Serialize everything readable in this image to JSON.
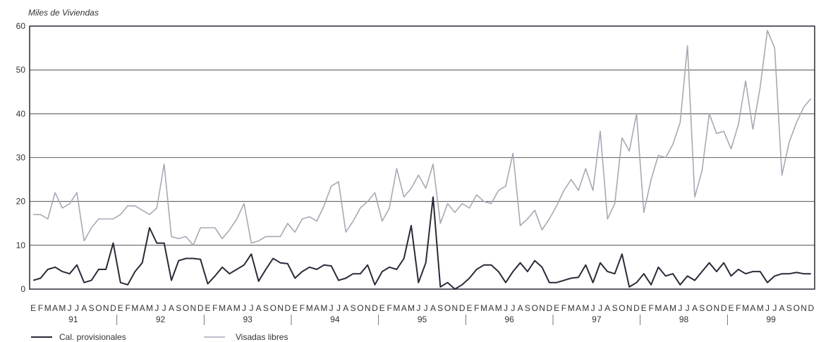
{
  "chart_data": {
    "type": "line",
    "ylabel": "Miles de Viviendas",
    "ylim": [
      0,
      60
    ],
    "yticks": [
      0,
      10,
      20,
      30,
      40,
      50,
      60
    ],
    "grid": "horizontal",
    "month_letters": [
      "E",
      "F",
      "M",
      "A",
      "M",
      "J",
      "J",
      "A",
      "S",
      "O",
      "N",
      "D"
    ],
    "years": [
      "91",
      "92",
      "93",
      "94",
      "95",
      "96",
      "97",
      "98",
      "99"
    ],
    "x": [
      "1991-01",
      "1991-02",
      "1991-03",
      "1991-04",
      "1991-05",
      "1991-06",
      "1991-07",
      "1991-08",
      "1991-09",
      "1991-10",
      "1991-11",
      "1991-12",
      "1992-01",
      "1992-02",
      "1992-03",
      "1992-04",
      "1992-05",
      "1992-06",
      "1992-07",
      "1992-08",
      "1992-09",
      "1992-10",
      "1992-11",
      "1992-12",
      "1993-01",
      "1993-02",
      "1993-03",
      "1993-04",
      "1993-05",
      "1993-06",
      "1993-07",
      "1993-08",
      "1993-09",
      "1993-10",
      "1993-11",
      "1993-12",
      "1994-01",
      "1994-02",
      "1994-03",
      "1994-04",
      "1994-05",
      "1994-06",
      "1994-07",
      "1994-08",
      "1994-09",
      "1994-10",
      "1994-11",
      "1994-12",
      "1995-01",
      "1995-02",
      "1995-03",
      "1995-04",
      "1995-05",
      "1995-06",
      "1995-07",
      "1995-08",
      "1995-09",
      "1995-10",
      "1995-11",
      "1995-12",
      "1996-01",
      "1996-02",
      "1996-03",
      "1996-04",
      "1996-05",
      "1996-06",
      "1996-07",
      "1996-08",
      "1996-09",
      "1996-10",
      "1996-11",
      "1996-12",
      "1997-01",
      "1997-02",
      "1997-03",
      "1997-04",
      "1997-05",
      "1997-06",
      "1997-07",
      "1997-08",
      "1997-09",
      "1997-10",
      "1997-11",
      "1997-12",
      "1998-01",
      "1998-02",
      "1998-03",
      "1998-04",
      "1998-05",
      "1998-06",
      "1998-07",
      "1998-08",
      "1998-09",
      "1998-10",
      "1998-11",
      "1998-12",
      "1999-01",
      "1999-02",
      "1999-03",
      "1999-04",
      "1999-05",
      "1999-06",
      "1999-07",
      "1999-08",
      "1999-09",
      "1999-10",
      "1999-11",
      "1999-12"
    ],
    "series": [
      {
        "name": "Cal. provisionales",
        "color": "#2a2a3a",
        "values": [
          2,
          2.5,
          4.5,
          5,
          4,
          3.5,
          5.5,
          1.5,
          2,
          4.5,
          4.5,
          10.5,
          1.5,
          1,
          4,
          6,
          14,
          10.5,
          10.5,
          2,
          6.5,
          7,
          7,
          6.8,
          1.2,
          3,
          5,
          3.5,
          4.5,
          5.5,
          8,
          1.8,
          4.5,
          7,
          6,
          5.8,
          2.5,
          4,
          5,
          4.5,
          5.5,
          5.3,
          2,
          2.5,
          3.5,
          3.5,
          5.5,
          1,
          4,
          5,
          4.5,
          7,
          14.5,
          1.5,
          6,
          21,
          0.5,
          1.5,
          0,
          1,
          2.5,
          4.5,
          5.5,
          5.5,
          4,
          1.5,
          4,
          6,
          4,
          6.5,
          5,
          1.5,
          1.5,
          2,
          2.5,
          2.7,
          5.5,
          1.5,
          6,
          4,
          3.5,
          8,
          0.5,
          1.5,
          3.5,
          1,
          5,
          3,
          3.5,
          1,
          3,
          2,
          4,
          6,
          4,
          6,
          3,
          4.5,
          3.5,
          4,
          4,
          1.5,
          3,
          3.5,
          3.5,
          3.8,
          3.5,
          3.5
        ]
      },
      {
        "name": "Visadas libres",
        "color": "#a8a8b8",
        "values": [
          17,
          17,
          16,
          22,
          18.5,
          19.5,
          22,
          11,
          14,
          16,
          16,
          16,
          17,
          19,
          19,
          18,
          17,
          18.5,
          28.5,
          12,
          11.5,
          12,
          10,
          14,
          14,
          14,
          11.5,
          13.5,
          16,
          19.5,
          10.5,
          11,
          12,
          12,
          12,
          15,
          13,
          16,
          16.5,
          15.5,
          19,
          23.5,
          24.5,
          13,
          15.5,
          18.5,
          20,
          22,
          15.5,
          18.5,
          27.5,
          21,
          23,
          26,
          23,
          28.5,
          15,
          19.5,
          17.5,
          19.5,
          18.5,
          21.5,
          20,
          19.5,
          22.5,
          23.5,
          31,
          14.5,
          16,
          18,
          13.5,
          16,
          19,
          22.5,
          25,
          22.5,
          27.5,
          22.5,
          36,
          16,
          19.5,
          34.5,
          31.5,
          40,
          17.5,
          25,
          30.5,
          30,
          33,
          38,
          55.5,
          21,
          27,
          40,
          35.5,
          36,
          32,
          37.5,
          47.5,
          36.5,
          46,
          59,
          55,
          26,
          33.5,
          38,
          41.5,
          43.5
        ]
      }
    ],
    "legend": {
      "placement": "bottom-left"
    }
  }
}
